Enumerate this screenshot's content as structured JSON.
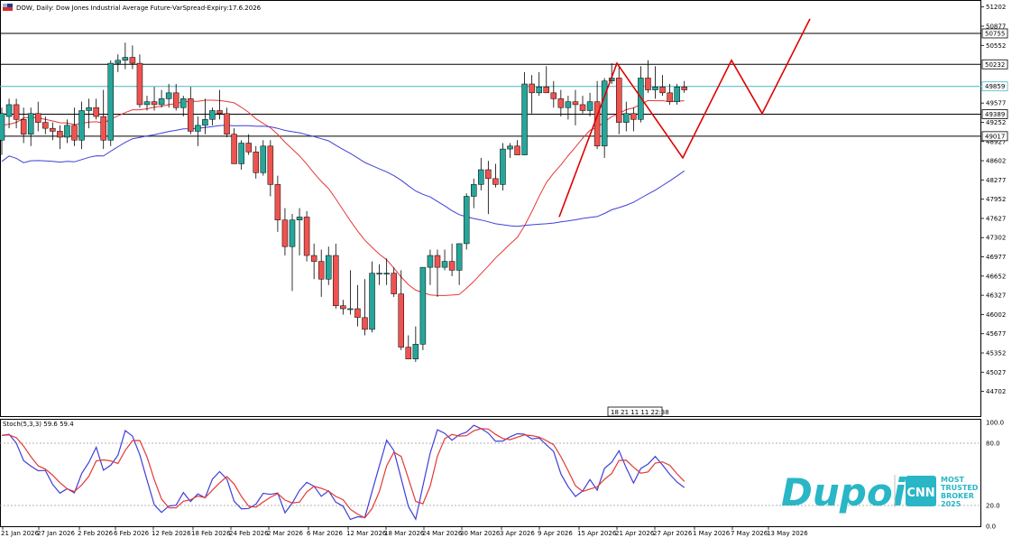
{
  "window_title": "DOW, Daily: Dow Jones Industrial Average Future-VarSpread-Expiry:17.6.2026",
  "crosshair_time": "18 21 11 11 22:38",
  "colors": {
    "bull": "#26a69a",
    "bear": "#ef5350",
    "ma_fast": "#e53935",
    "ma_slow": "#3f3fd8",
    "pattern": "#e00000",
    "current_line": "#49b7c2",
    "brand": "#29b6c6"
  },
  "chart_data": [
    {
      "type": "candlestick",
      "title": "DOW, Daily: Dow Jones Industrial Average Future-VarSpread-Expiry:17.6.2026",
      "y_ticks": [
        "51202",
        "50877",
        "50552",
        "49577",
        "49252",
        "48927",
        "48602",
        "48277",
        "47952",
        "47627",
        "47302",
        "46977",
        "46652",
        "46327",
        "46002",
        "45677",
        "45352",
        "45027",
        "44702"
      ],
      "ylim": [
        44500,
        51300
      ],
      "x_ticks": [
        "21 Jan 2026",
        "27 Jan 2026",
        "2 Feb 2026",
        "6 Feb 2026",
        "12 Feb 2026",
        "18 Feb 2026",
        "24 Feb 2026",
        "2 Mar 2026",
        "6 Mar 2026",
        "12 Mar 2026",
        "18 Mar 2026",
        "24 Mar 2026",
        "30 Mar 2026",
        "3 Apr 2026",
        "9 Apr 2026",
        "15 Apr 2026",
        "21 Apr 2026",
        "27 Apr 2026",
        "1 May 2026",
        "7 May 2026",
        "13 May 2026"
      ],
      "price_levels": [
        {
          "label": "50755",
          "value": 50755,
          "style": "black"
        },
        {
          "label": "50232",
          "value": 50232,
          "style": "black"
        },
        {
          "label": "49859",
          "value": 49859,
          "style": "current"
        },
        {
          "label": "49389",
          "value": 49389,
          "style": "black"
        },
        {
          "label": "49017",
          "value": 49017,
          "style": "black"
        }
      ],
      "ohlc": [
        [
          48950,
          49500,
          48700,
          49400
        ],
        [
          49350,
          49650,
          49150,
          49550
        ],
        [
          49550,
          49650,
          49150,
          49300
        ],
        [
          49300,
          49500,
          48900,
          49050
        ],
        [
          49050,
          49500,
          48850,
          49400
        ],
        [
          49400,
          49600,
          49100,
          49250
        ],
        [
          49250,
          49350,
          49050,
          49150
        ],
        [
          49150,
          49250,
          48950,
          49100
        ],
        [
          49100,
          49200,
          48800,
          49000
        ],
        [
          49000,
          49300,
          48900,
          49200
        ],
        [
          49200,
          49500,
          48850,
          48950
        ],
        [
          48950,
          49600,
          48800,
          49450
        ],
        [
          49450,
          49650,
          49150,
          49500
        ],
        [
          49500,
          49650,
          49300,
          49350
        ],
        [
          49350,
          49800,
          48800,
          48950
        ],
        [
          48950,
          50300,
          48850,
          50250
        ],
        [
          50250,
          50400,
          50100,
          50300
        ],
        [
          50300,
          50600,
          50150,
          50350
        ],
        [
          50350,
          50550,
          50150,
          50250
        ],
        [
          50250,
          50400,
          49500,
          49550
        ],
        [
          49550,
          49700,
          49450,
          49600
        ],
        [
          49600,
          49850,
          49450,
          49550
        ],
        [
          49550,
          49800,
          49500,
          49650
        ],
        [
          49650,
          49900,
          49500,
          49750
        ],
        [
          49750,
          49900,
          49450,
          49500
        ],
        [
          49500,
          49700,
          49350,
          49650
        ],
        [
          49650,
          49850,
          49050,
          49100
        ],
        [
          49100,
          49350,
          48850,
          49200
        ],
        [
          49200,
          49650,
          49050,
          49300
        ],
        [
          49300,
          49500,
          49200,
          49450
        ],
        [
          49450,
          49800,
          49300,
          49400
        ],
        [
          49400,
          49500,
          49000,
          49050
        ],
        [
          49050,
          49150,
          48600,
          48550
        ],
        [
          48550,
          48950,
          48450,
          48900
        ],
        [
          48900,
          49050,
          48700,
          48750
        ],
        [
          48750,
          48850,
          48300,
          48400
        ],
        [
          48400,
          48950,
          48350,
          48850
        ],
        [
          48850,
          48950,
          48000,
          48200
        ],
        [
          48200,
          48350,
          47400,
          47600
        ],
        [
          47600,
          47800,
          47000,
          47150
        ],
        [
          47150,
          47700,
          46400,
          47600
        ],
        [
          47600,
          47800,
          47000,
          47650
        ],
        [
          47650,
          47750,
          46900,
          47000
        ],
        [
          47000,
          47200,
          46600,
          46900
        ],
        [
          46900,
          47100,
          46300,
          46600
        ],
        [
          46600,
          47150,
          46500,
          47000
        ],
        [
          47000,
          47200,
          46100,
          46150
        ],
        [
          46150,
          46250,
          46000,
          46100
        ],
        [
          46100,
          46750,
          46000,
          46100
        ],
        [
          46100,
          46500,
          45800,
          45950
        ],
        [
          45950,
          46600,
          45650,
          45750
        ],
        [
          45750,
          46900,
          45700,
          46700
        ],
        [
          46700,
          46850,
          46500,
          46700
        ],
        [
          46700,
          46950,
          46500,
          46700
        ],
        [
          46700,
          46800,
          46300,
          46350
        ],
        [
          46350,
          46750,
          45400,
          45450
        ],
        [
          45450,
          45650,
          45250,
          45250
        ],
        [
          45250,
          45800,
          45200,
          45500
        ],
        [
          45500,
          46800,
          45400,
          46800
        ],
        [
          46800,
          47100,
          46500,
          47000
        ],
        [
          47000,
          47100,
          46300,
          46800
        ],
        [
          46800,
          47100,
          46750,
          46900
        ],
        [
          46900,
          47200,
          46650,
          46750
        ],
        [
          46750,
          47150,
          46500,
          47200
        ],
        [
          47200,
          48050,
          47100,
          48000
        ],
        [
          48000,
          48300,
          47800,
          48200
        ],
        [
          48200,
          48650,
          48100,
          48450
        ],
        [
          48450,
          48600,
          47700,
          48300
        ],
        [
          48300,
          48550,
          48150,
          48200
        ],
        [
          48200,
          48900,
          48100,
          48800
        ],
        [
          48800,
          48900,
          48650,
          48850
        ],
        [
          48850,
          48950,
          48700,
          48700
        ],
        [
          48700,
          50100,
          48700,
          49900
        ],
        [
          49900,
          50050,
          49400,
          49750
        ],
        [
          49750,
          50100,
          49700,
          49850
        ],
        [
          49850,
          50200,
          49750,
          49750
        ],
        [
          49750,
          49950,
          49500,
          49650
        ],
        [
          49650,
          49800,
          49350,
          49500
        ],
        [
          49500,
          49700,
          49300,
          49600
        ],
        [
          49600,
          49800,
          49200,
          49550
        ],
        [
          49550,
          49700,
          49400,
          49450
        ],
        [
          49450,
          49750,
          49350,
          49600
        ],
        [
          49600,
          49950,
          48800,
          48850
        ],
        [
          48850,
          50000,
          48650,
          49950
        ],
        [
          49950,
          50250,
          49900,
          50000
        ],
        [
          50000,
          50200,
          49050,
          49250
        ],
        [
          49250,
          49600,
          49100,
          49400
        ],
        [
          49400,
          49500,
          49100,
          49300
        ],
        [
          49300,
          50200,
          49250,
          50000
        ],
        [
          50000,
          50300,
          49750,
          49800
        ],
        [
          49800,
          50200,
          49650,
          49850
        ],
        [
          49850,
          50050,
          49700,
          49750
        ],
        [
          49750,
          49900,
          49550,
          49600
        ],
        [
          49600,
          49900,
          49550,
          49850
        ],
        [
          49850,
          49950,
          49750,
          49800
        ]
      ],
      "ma_fast_name": "",
      "ma_slow_name": "",
      "pattern_points": [
        [
          620,
          47650
        ],
        [
          684,
          50250
        ],
        [
          757,
          48650
        ],
        [
          811,
          50300
        ],
        [
          845,
          49400
        ],
        [
          898,
          51000
        ]
      ]
    },
    {
      "type": "line",
      "title": "Stoch(5,3,3) 59.6 59.4",
      "y_ticks": [
        "100.0",
        "80.0",
        "20.0",
        "0.0"
      ],
      "ylim": [
        0,
        100
      ],
      "levels": [
        20,
        80
      ]
    }
  ],
  "branding": {
    "logo_text": "Dupoin",
    "cnn_text": "CNN",
    "tagline": [
      "MOST",
      "TRUSTED",
      "BROKER",
      "2025"
    ]
  }
}
